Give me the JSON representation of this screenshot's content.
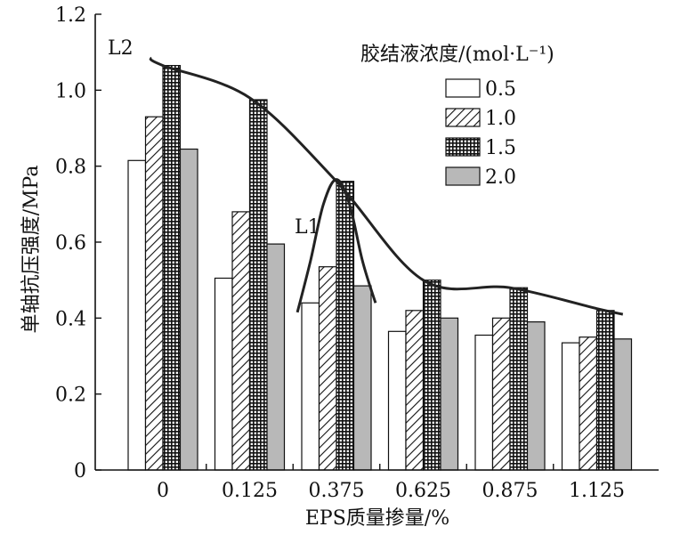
{
  "chart_data": {
    "type": "bar",
    "xlabel": "EPS质量掺量/%",
    "ylabel": "单轴抗压强度/MPa",
    "categories": [
      "0",
      "0.125",
      "0.375",
      "0.625",
      "0.875",
      "1.125"
    ],
    "ylim": [
      0,
      1.2
    ],
    "yticks": [
      "0",
      "0.2",
      "0.4",
      "0.6",
      "0.8",
      "1.0",
      "1.2"
    ],
    "legend_title": "胶结液浓度/(mol·L⁻¹)",
    "legend_position": "top-right",
    "grid": false,
    "series": [
      {
        "name": "0.5",
        "pattern": "white",
        "values": [
          0.815,
          0.505,
          0.44,
          0.365,
          0.355,
          0.335
        ]
      },
      {
        "name": "1.0",
        "pattern": "hatch",
        "values": [
          0.93,
          0.68,
          0.535,
          0.42,
          0.4,
          0.35
        ]
      },
      {
        "name": "1.5",
        "pattern": "grid",
        "values": [
          1.065,
          0.975,
          0.76,
          0.5,
          0.48,
          0.42
        ]
      },
      {
        "name": "2.0",
        "pattern": "gray",
        "values": [
          0.845,
          0.595,
          0.485,
          0.4,
          0.39,
          0.345
        ]
      }
    ],
    "annotations": [
      {
        "label": "L2",
        "x": [
          -0.15,
          0,
          1,
          2,
          3,
          4,
          5,
          5.3
        ],
        "y": [
          1.085,
          1.065,
          0.98,
          0.76,
          0.5,
          0.48,
          0.425,
          0.41
        ]
      },
      {
        "label": "L1",
        "x": [
          1.55,
          1.7,
          1.85,
          2.0,
          2.15,
          2.3,
          2.45
        ],
        "y": [
          0.415,
          0.55,
          0.7,
          0.765,
          0.7,
          0.55,
          0.44
        ]
      }
    ]
  },
  "colors": {
    "axis": "#111111",
    "bar_stroke": "#111111",
    "white_fill": "#ffffff",
    "gray_fill": "#b8b8b8",
    "curve": "#222222"
  }
}
